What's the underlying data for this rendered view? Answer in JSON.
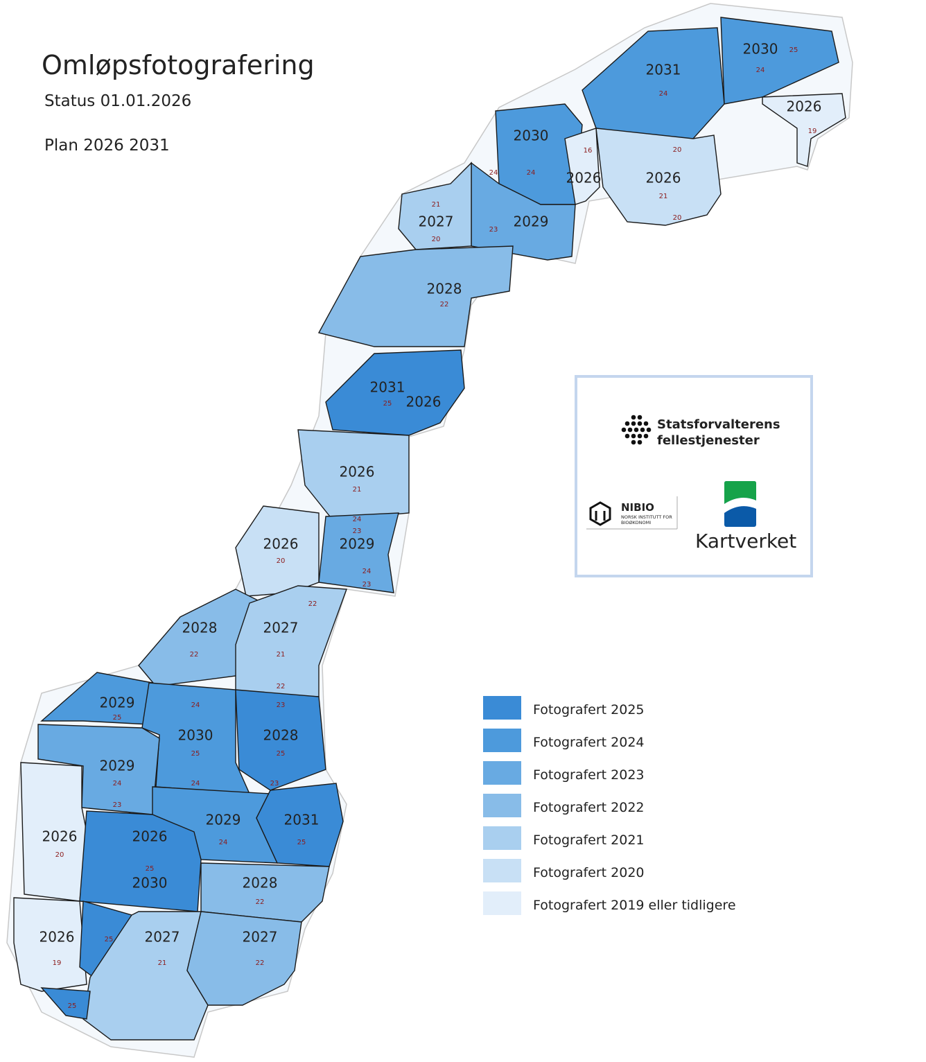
{
  "header": {
    "title": "Omløpsfotografering",
    "status": "Status 01.01.2026",
    "plan": "Plan 2026 2031"
  },
  "legend": {
    "items": [
      {
        "label": "Fotografert 2025",
        "color": "#3a8bd6"
      },
      {
        "label": "Fotografert 2024",
        "color": "#4d9adc"
      },
      {
        "label": "Fotografert 2023",
        "color": "#68aae2"
      },
      {
        "label": "Fotografert 2022",
        "color": "#88bce8"
      },
      {
        "label": "Fotografert 2021",
        "color": "#a9cfef"
      },
      {
        "label": "Fotografert 2020",
        "color": "#c8e0f5"
      },
      {
        "label": "Fotografert 2019 eller tidligere",
        "color": "#e2eefa"
      }
    ]
  },
  "map": {
    "years": [
      "2030",
      "2031",
      "2026",
      "2030",
      "2026",
      "2026",
      "2027",
      "2029",
      "2028",
      "2031",
      "2026",
      "2026",
      "2026",
      "2029",
      "2028",
      "2027",
      "2029",
      "2030",
      "2028",
      "2029",
      "2029",
      "2031",
      "2026",
      "2026",
      "2030",
      "2028",
      "2026",
      "2027",
      "2027"
    ],
    "codes": [
      25,
      24,
      24,
      16,
      20,
      21,
      20,
      19,
      24,
      24,
      21,
      20,
      23,
      22,
      25,
      21,
      24,
      23,
      20,
      24,
      23,
      22,
      22,
      21,
      22,
      25,
      24,
      23,
      25,
      25,
      24,
      23,
      24,
      23,
      24,
      25,
      20,
      25,
      22,
      25,
      19,
      21,
      22,
      25
    ]
  },
  "logos": {
    "statsforvalteren": [
      "Statsforvalterens",
      "fellestjenester"
    ],
    "nibio": {
      "name": "NIBIO",
      "subtitle": [
        "NORSK INSTITUTT FOR",
        "BIOØKONOMI"
      ]
    },
    "kartverket": "Kartverket"
  }
}
